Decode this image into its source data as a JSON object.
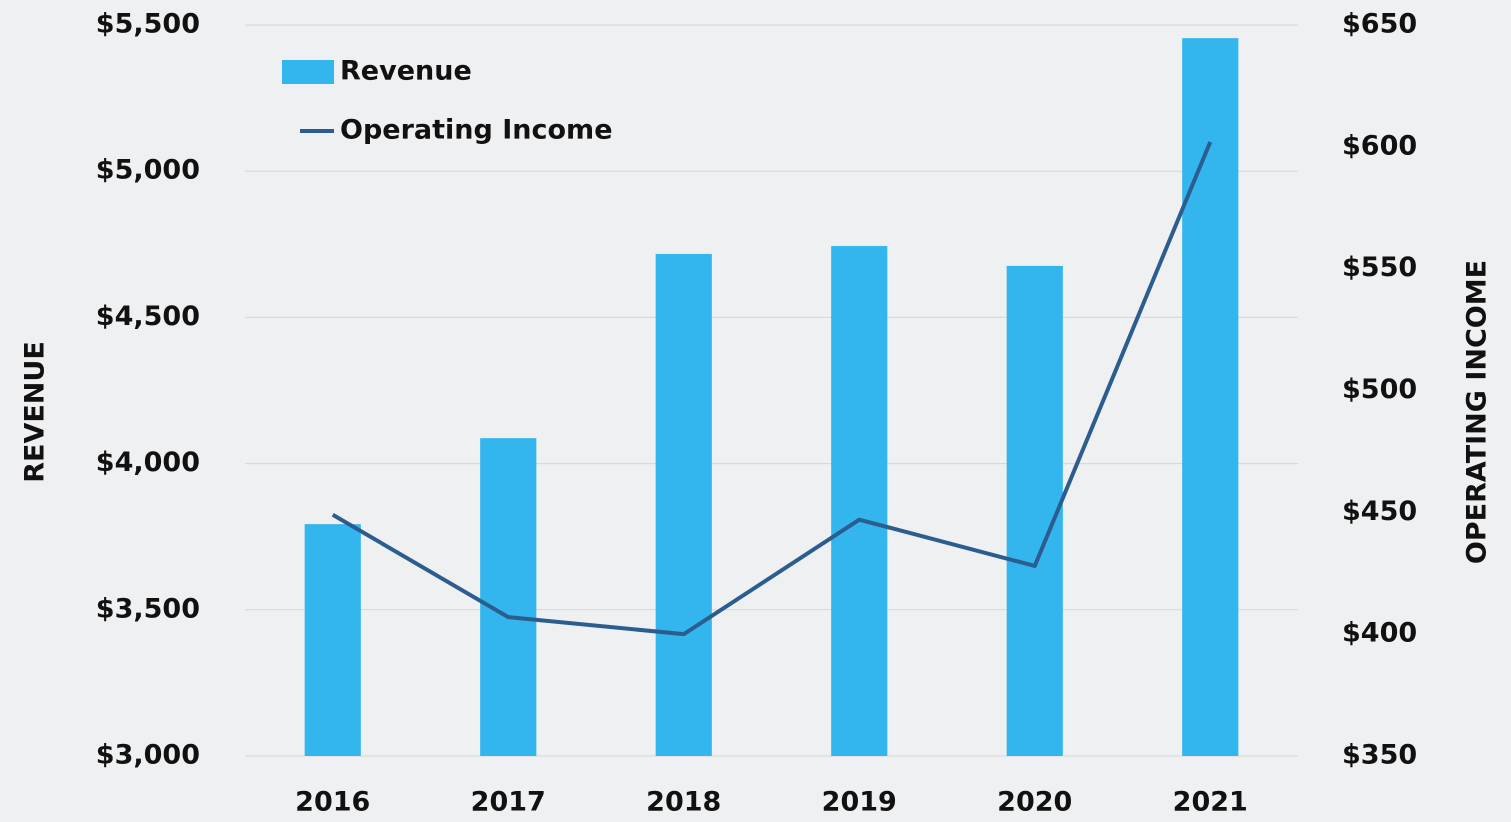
{
  "chart_data": {
    "type": "bar-line",
    "categories": [
      "2016",
      "2017",
      "2018",
      "2019",
      "2020",
      "2021"
    ],
    "series": [
      {
        "name": "Revenue",
        "type": "bar",
        "color": "#33b5ee",
        "values": [
          3793,
          4087,
          4717,
          4744,
          4676,
          5455
        ]
      },
      {
        "name": "Operating Income",
        "type": "line",
        "axis": "y2",
        "color": "#2b5d8f",
        "values": [
          449,
          407,
          400,
          447,
          428,
          602
        ]
      }
    ],
    "ylabel": "REVENUE",
    "y2label": "OPERATING INCOME",
    "ylim": [
      3000,
      5500
    ],
    "yticks": [
      {
        "value": 3000,
        "label": "$3,000"
      },
      {
        "value": 3500,
        "label": "$3,500"
      },
      {
        "value": 4000,
        "label": "$4,000"
      },
      {
        "value": 4500,
        "label": "$4,500"
      },
      {
        "value": 5000,
        "label": "$5,000"
      },
      {
        "value": 5500,
        "label": "$5,500"
      }
    ],
    "y2lim": [
      350,
      650
    ],
    "y2ticks": [
      {
        "value": 350,
        "label": "$350"
      },
      {
        "value": 400,
        "label": "$400"
      },
      {
        "value": 450,
        "label": "$450"
      },
      {
        "value": 500,
        "label": "$500"
      },
      {
        "value": 550,
        "label": "$550"
      },
      {
        "value": 600,
        "label": "$600"
      },
      {
        "value": 650,
        "label": "$650"
      }
    ],
    "grid": true,
    "legend": "upper left"
  }
}
